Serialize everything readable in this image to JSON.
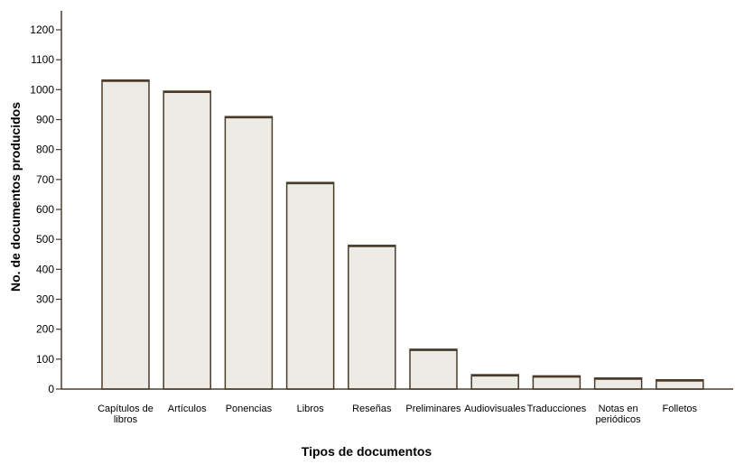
{
  "chart_data": {
    "type": "bar",
    "xlabel": "Tipos de documentos",
    "ylabel": "No. de documentos producidos",
    "categories": [
      [
        "Capítulos de",
        "libros"
      ],
      [
        "Artículos"
      ],
      [
        "Ponencias"
      ],
      [
        "Libros"
      ],
      [
        "Reseñas"
      ],
      [
        "Preliminares"
      ],
      [
        "Audiovisuales"
      ],
      [
        "Traducciones"
      ],
      [
        "Notas en",
        "periódicos"
      ],
      [
        "Folletos"
      ]
    ],
    "values": [
      1032,
      995,
      910,
      690,
      480,
      133,
      48,
      44,
      37,
      31
    ],
    "ylim": [
      0,
      1200
    ],
    "yticks": [
      0,
      100,
      200,
      300,
      400,
      500,
      600,
      700,
      800,
      900,
      1000,
      1100,
      1200
    ],
    "grid": false,
    "legend": "none",
    "colors": {
      "bar_fill": "#ecebe6",
      "bar_stroke": "#4a3b2a",
      "axis": "#4a3b2a",
      "text": "#000000"
    }
  }
}
